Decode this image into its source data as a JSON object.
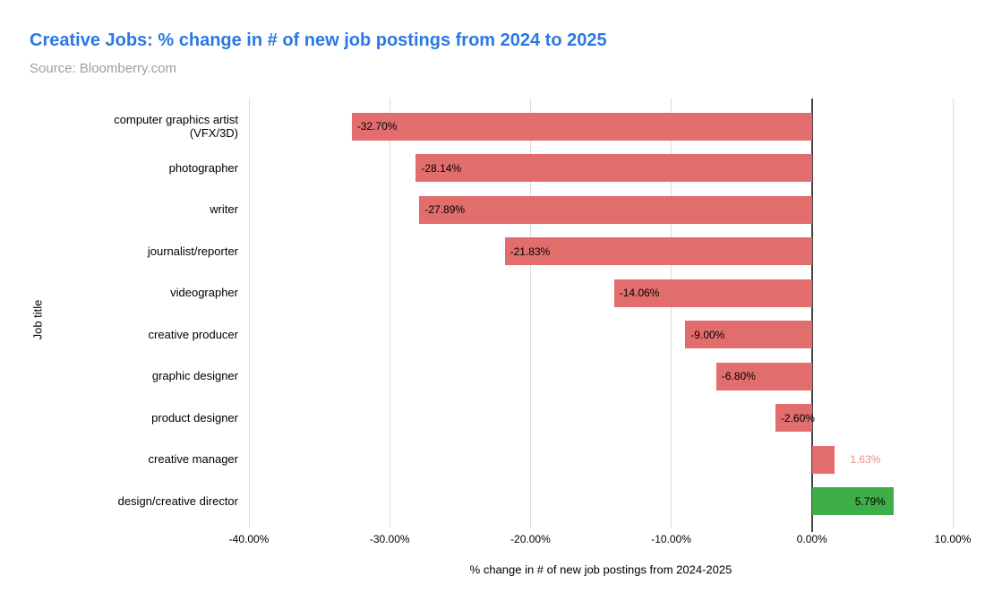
{
  "chart_data": {
    "type": "bar",
    "orientation": "horizontal",
    "title": "Creative Jobs: % change in # of new job postings from 2024 to 2025",
    "source": "Source: Bloomberry.com",
    "xlabel": "% change in # of new job postings from 2024-2025",
    "ylabel": "Job title",
    "xlim": [
      -40,
      10
    ],
    "grid": true,
    "legend": "none",
    "x_ticks": [
      {
        "label": "-40.00%",
        "value": -40
      },
      {
        "label": "-30.00%",
        "value": -30
      },
      {
        "label": "-20.00%",
        "value": -20
      },
      {
        "label": "-10.00%",
        "value": -10
      },
      {
        "label": "0.00%",
        "value": 0
      },
      {
        "label": "10.00%",
        "value": 10
      }
    ],
    "bars": [
      {
        "category": "computer graphics artist (VFX/3D)",
        "value": -32.7,
        "label": "-32.70%",
        "color": "#E26D6D",
        "label_position": "inside-start",
        "label_color": "#000000"
      },
      {
        "category": "photographer",
        "value": -28.14,
        "label": "-28.14%",
        "color": "#E26D6D",
        "label_position": "inside-start",
        "label_color": "#000000"
      },
      {
        "category": "writer",
        "value": -27.89,
        "label": "-27.89%",
        "color": "#E26D6D",
        "label_position": "inside-start",
        "label_color": "#000000"
      },
      {
        "category": "journalist/reporter",
        "value": -21.83,
        "label": "-21.83%",
        "color": "#E26D6D",
        "label_position": "inside-start",
        "label_color": "#000000"
      },
      {
        "category": "videographer",
        "value": -14.06,
        "label": "-14.06%",
        "color": "#E26D6D",
        "label_position": "inside-start",
        "label_color": "#000000"
      },
      {
        "category": "creative producer",
        "value": -9.0,
        "label": "-9.00%",
        "color": "#E26D6D",
        "label_position": "inside-start",
        "label_color": "#000000"
      },
      {
        "category": "graphic designer",
        "value": -6.8,
        "label": "-6.80%",
        "color": "#E26D6D",
        "label_position": "inside-start",
        "label_color": "#000000"
      },
      {
        "category": "product designer",
        "value": -2.6,
        "label": "-2.60%",
        "color": "#E26D6D",
        "label_position": "inside-start",
        "label_color": "#000000"
      },
      {
        "category": "creative manager",
        "value": 1.63,
        "label": "1.63%",
        "color": "#E26D6D",
        "label_position": "outside-end",
        "label_color": "#E88B8B"
      },
      {
        "category": "design/creative director",
        "value": 5.79,
        "label": "5.79%",
        "color": "#3EAE49",
        "label_position": "inside-end",
        "label_color": "#000000"
      }
    ],
    "colors": {
      "negative_bar": "#E26D6D",
      "positive_highlight_bar": "#3EAE49",
      "outside_label_text": "#E88B8B",
      "grid_line": "#DADCE0",
      "zero_line": "#424242",
      "title_text": "#2B78E4",
      "source_text": "#9E9E9E"
    }
  }
}
